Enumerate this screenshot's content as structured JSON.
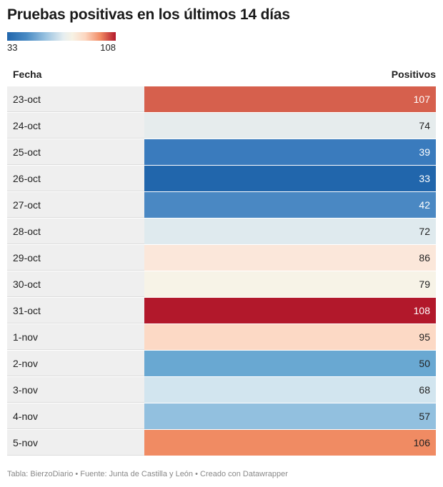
{
  "title": "Pruebas positivas en los últimos 14 días",
  "legend": {
    "min": "33",
    "max": "108"
  },
  "headers": {
    "fecha": "Fecha",
    "positivos": "Positivos"
  },
  "chart_data": {
    "type": "table",
    "title": "Pruebas positivas en los últimos 14 días",
    "columns": [
      "Fecha",
      "Positivos"
    ],
    "color_scale": {
      "min": 33,
      "max": 108,
      "low_color": "#2166ac",
      "mid_color": "#f7f7f7",
      "high_color": "#b2182b"
    },
    "rows": [
      {
        "fecha": "23-oct",
        "positivos": 107,
        "color": "#d6604d"
      },
      {
        "fecha": "24-oct",
        "positivos": 74,
        "color": "#e6eced"
      },
      {
        "fecha": "25-oct",
        "positivos": 39,
        "color": "#3a7bbd"
      },
      {
        "fecha": "26-oct",
        "positivos": 33,
        "color": "#2166ac"
      },
      {
        "fecha": "27-oct",
        "positivos": 42,
        "color": "#4a88c3"
      },
      {
        "fecha": "28-oct",
        "positivos": 72,
        "color": "#dfeaee"
      },
      {
        "fecha": "29-oct",
        "positivos": 86,
        "color": "#fbe7da"
      },
      {
        "fecha": "30-oct",
        "positivos": 79,
        "color": "#f7f3e7"
      },
      {
        "fecha": "31-oct",
        "positivos": 108,
        "color": "#b2182b"
      },
      {
        "fecha": "1-nov",
        "positivos": 95,
        "color": "#fcd9c5"
      },
      {
        "fecha": "2-nov",
        "positivos": 50,
        "color": "#69a8d2"
      },
      {
        "fecha": "3-nov",
        "positivos": 68,
        "color": "#d2e5ef"
      },
      {
        "fecha": "4-nov",
        "positivos": 57,
        "color": "#92c0df"
      },
      {
        "fecha": "5-nov",
        "positivos": 106,
        "color": "#f08b63"
      }
    ]
  },
  "footer": "Tabla: BierzoDiario • Fuente: Junta de Castilla y León • Creado con Datawrapper"
}
